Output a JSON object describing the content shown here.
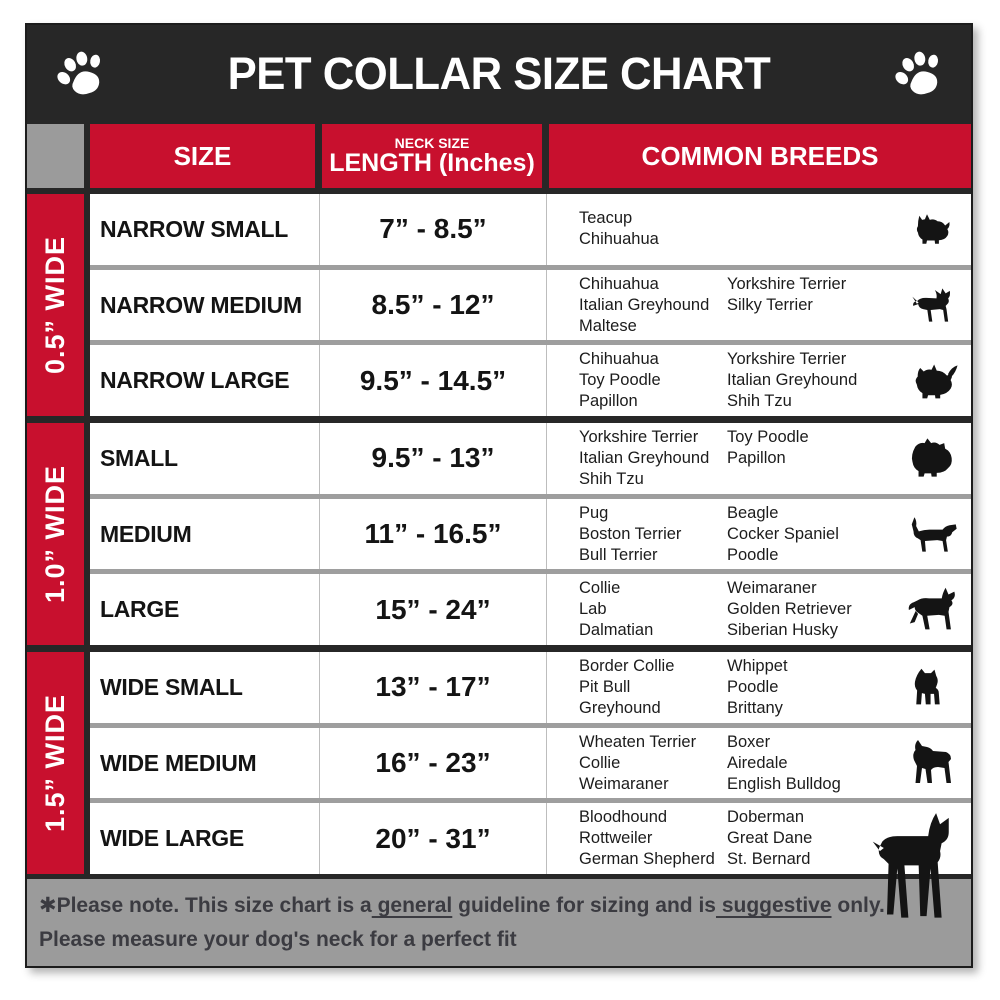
{
  "title": "PET COLLAR SIZE CHART",
  "header": {
    "size": "SIZE",
    "neck_line1": "NECK SIZE",
    "neck_line2": "LENGTH (Inches)",
    "breeds": "COMMON BREEDS"
  },
  "sections": [
    {
      "width_label": "0.5” WIDE",
      "rows": [
        {
          "size": "NARROW SMALL",
          "neck": "7” - 8.5”",
          "breeds_col1": [
            "Teacup",
            "Chihuahua"
          ],
          "breeds_col2": [],
          "icon": "yorkshire-terrier-icon"
        },
        {
          "size": "NARROW MEDIUM",
          "neck": "8.5” - 12”",
          "breeds_col1": [
            "Chihuahua",
            "Italian Greyhound",
            "Maltese"
          ],
          "breeds_col2": [
            "Yorkshire Terrier",
            "Silky Terrier"
          ],
          "icon": "chihuahua-icon"
        },
        {
          "size": "NARROW LARGE",
          "neck": "9.5” - 14.5”",
          "breeds_col1": [
            "Chihuahua",
            "Toy Poodle",
            "Papillon"
          ],
          "breeds_col2": [
            "Yorkshire Terrier",
            "Italian Greyhound",
            "Shih Tzu"
          ],
          "icon": "pomeranian-icon"
        }
      ]
    },
    {
      "width_label": "1.0” WIDE",
      "rows": [
        {
          "size": "SMALL",
          "neck": "9.5” - 13”",
          "breeds_col1": [
            "Yorkshire Terrier",
            "Italian Greyhound",
            "Shih Tzu"
          ],
          "breeds_col2": [
            "Toy Poodle",
            "Papillon"
          ],
          "icon": "pekingese-icon"
        },
        {
          "size": "MEDIUM",
          "neck": "11” - 16.5”",
          "breeds_col1": [
            "Pug",
            "Boston Terrier",
            "Bull Terrier"
          ],
          "breeds_col2": [
            "Beagle",
            "Cocker Spaniel",
            "Poodle"
          ],
          "icon": "dachshund-icon"
        },
        {
          "size": "LARGE",
          "neck": "15” - 24”",
          "breeds_col1": [
            "Collie",
            "Lab",
            "Dalmatian"
          ],
          "breeds_col2": [
            "Weimaraner",
            "Golden Retriever",
            "Siberian Husky"
          ],
          "icon": "german-shepherd-icon"
        }
      ]
    },
    {
      "width_label": "1.5” WIDE",
      "rows": [
        {
          "size": "WIDE SMALL",
          "neck": "13” - 17”",
          "breeds_col1": [
            "Border Collie",
            "Pit Bull",
            "Greyhound"
          ],
          "breeds_col2": [
            "Whippet",
            "Poodle",
            "Brittany"
          ],
          "icon": "pit-bull-icon"
        },
        {
          "size": "WIDE MEDIUM",
          "neck": "16” - 23”",
          "breeds_col1": [
            "Wheaten Terrier",
            "Collie",
            "Weimaraner"
          ],
          "breeds_col2": [
            "Boxer",
            "Airedale",
            "English Bulldog"
          ],
          "icon": "boxer-icon"
        },
        {
          "size": "WIDE LARGE",
          "neck": "20” - 31”",
          "breeds_col1": [
            "Bloodhound",
            "Rottweiler",
            "German Shepherd"
          ],
          "breeds_col2": [
            "Doberman",
            "Great Dane",
            "St. Bernard"
          ],
          "icon": "doberman-icon"
        }
      ]
    }
  ],
  "footer": {
    "part1": "✱Please note. This size chart is a",
    "underline1": " general",
    "part2": " guideline for sizing and is",
    "underline2": " suggestive",
    "part3": " only.",
    "line2": "Please measure your dog's neck for a perfect fit"
  },
  "icons": {
    "title_left": "paw-icon",
    "title_right": "paw-icon"
  },
  "colors": {
    "accent_red": "#c8102e",
    "charcoal": "#272727",
    "footer_gray": "#9b9b9b",
    "row_separator_gray": "#9e9e9e",
    "text_black": "#141414",
    "text_white": "#ffffff"
  }
}
